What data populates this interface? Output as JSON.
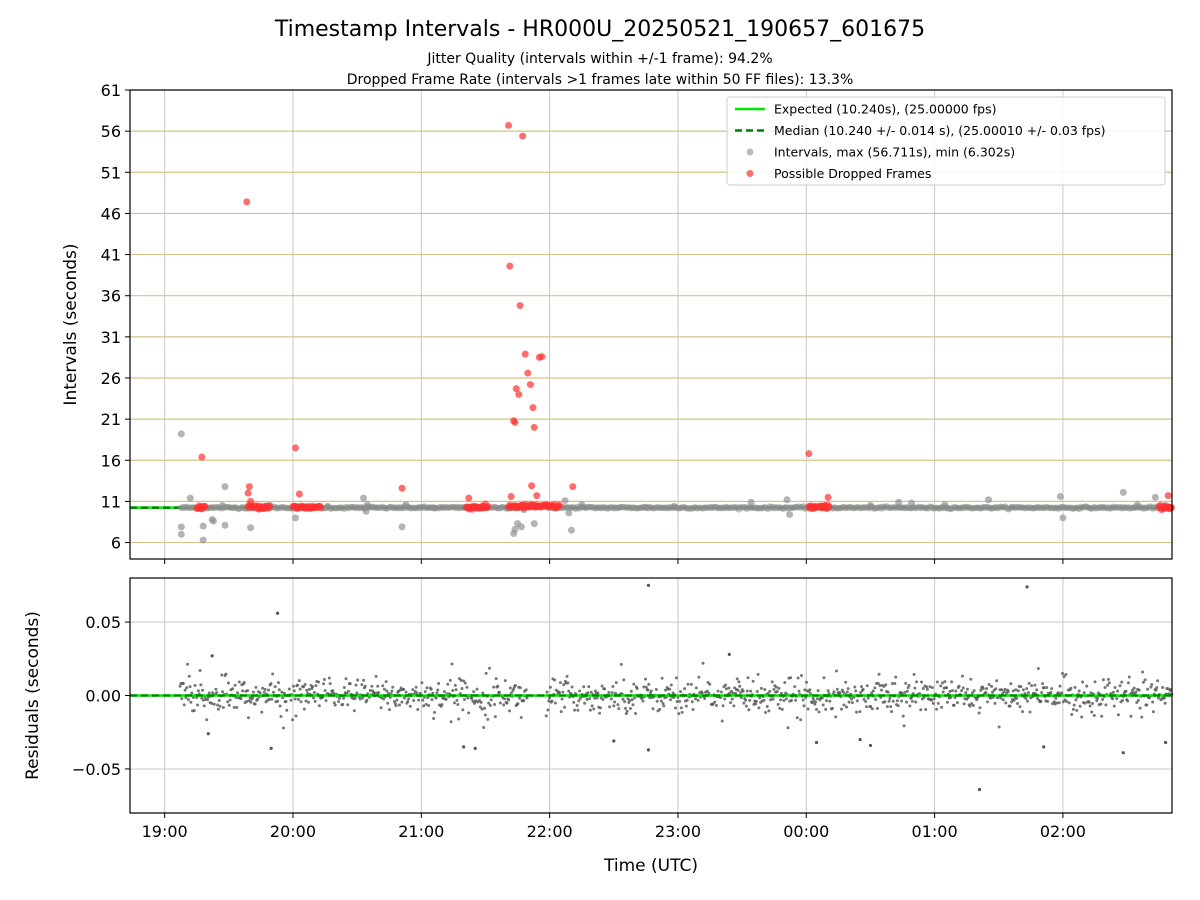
{
  "chart_data": [
    {
      "type": "scatter",
      "panel": "intervals",
      "title": "Timestamp Intervals - HR000U_20250521_190657_601675",
      "subtitle_lines": [
        "Jitter Quality (intervals within +/-1 frame): 94.2%",
        "Dropped Frame Rate (intervals >1 frames late within 50 FF files): 13.3%"
      ],
      "xlabel": "",
      "ylabel": "Intervals (seconds)",
      "x_tick_labels": [
        "19:00",
        "20:00",
        "21:00",
        "22:00",
        "23:00",
        "00:00",
        "01:00",
        "02:00"
      ],
      "x_tick_hours": [
        19,
        20,
        21,
        22,
        23,
        24,
        25,
        26
      ],
      "xlim_hours": [
        18.73,
        26.85
      ],
      "ylim": [
        4,
        61
      ],
      "y_ticks": [
        6,
        11,
        16,
        21,
        26,
        31,
        36,
        41,
        46,
        51,
        56,
        61
      ],
      "grid": true,
      "legend_placement": "top-right",
      "colors": {
        "expected": "#00e600",
        "median": "#007f00",
        "intervals": "#8c8c8c",
        "dropped": "#ff3030",
        "hgrid": "#d2c48a",
        "vgrid": "#c8c8c8"
      },
      "expected_value": 10.24,
      "median_value": 10.24,
      "legend": [
        "Expected (10.240s), (25.00000 fps)",
        "Median (10.240 +/- 0.014 s), (25.00010 +/- 0.03 fps)",
        "Intervals, max (56.711s), min (6.302s)",
        "Possible Dropped Frames"
      ],
      "series": [
        {
          "name": "Intervals, max (56.711s), min (6.302s)",
          "x": [
            19.13,
            19.13,
            19.13,
            19.2,
            19.3,
            19.3,
            19.37,
            19.38,
            19.45,
            19.47,
            19.47,
            19.67,
            19.82,
            20.02,
            20.27,
            20.55,
            20.57,
            20.58,
            20.85,
            20.88,
            21.1,
            21.72,
            21.73,
            21.75,
            21.78,
            21.8,
            21.88,
            22.12,
            22.15,
            22.17,
            22.25,
            22.75,
            22.97,
            23.57,
            23.85,
            23.87,
            24.5,
            24.72,
            24.82,
            25.08,
            25.42,
            25.98,
            26.0,
            26.47,
            26.58,
            26.72,
            26.8
          ],
          "values": [
            19.2,
            7.9,
            7.0,
            11.4,
            8.0,
            6.3,
            8.8,
            8.6,
            10.5,
            8.1,
            12.8,
            7.8,
            10.5,
            9.0,
            10.4,
            11.4,
            9.8,
            10.6,
            7.9,
            10.6,
            10.2,
            7.1,
            7.6,
            8.3,
            7.9,
            10.0,
            8.3,
            11.1,
            9.6,
            7.5,
            10.6,
            10.3,
            10.4,
            10.9,
            11.2,
            9.4,
            10.5,
            10.9,
            10.8,
            10.6,
            11.2,
            11.6,
            9.0,
            12.1,
            10.6,
            11.5,
            10.5
          ]
        },
        {
          "name": "Possible Dropped Frames",
          "x": [
            19.27,
            19.29,
            19.64,
            19.65,
            19.66,
            19.67,
            20.02,
            20.05,
            20.85,
            21.37,
            21.68,
            21.69,
            21.7,
            21.72,
            21.73,
            21.74,
            21.76,
            21.77,
            21.79,
            21.81,
            21.83,
            21.85,
            21.86,
            21.87,
            21.88,
            21.9,
            21.92,
            21.94,
            22.18,
            24.02,
            24.17,
            26.82
          ],
          "values": [
            10.3,
            16.4,
            47.4,
            12.0,
            12.8,
            11.0,
            17.5,
            11.9,
            12.6,
            11.4,
            56.7,
            39.6,
            11.6,
            20.8,
            20.6,
            24.7,
            24.0,
            34.8,
            55.4,
            28.9,
            26.6,
            25.2,
            12.9,
            22.4,
            20.0,
            11.7,
            28.5,
            28.6,
            12.8,
            16.8,
            11.5,
            11.7
          ],
          "clusters": [
            {
              "x_start": 19.25,
              "x_end": 19.32,
              "value": 10.3
            },
            {
              "x_start": 19.65,
              "x_end": 19.82,
              "value": 10.3
            },
            {
              "x_start": 20.0,
              "x_end": 20.22,
              "value": 10.3
            },
            {
              "x_start": 21.35,
              "x_end": 21.52,
              "value": 10.3
            },
            {
              "x_start": 21.68,
              "x_end": 22.08,
              "value": 10.4
            },
            {
              "x_start": 24.02,
              "x_end": 24.18,
              "value": 10.3
            },
            {
              "x_start": 26.75,
              "x_end": 26.85,
              "value": 10.3
            }
          ]
        }
      ]
    },
    {
      "type": "scatter",
      "panel": "residuals",
      "xlabel": "Time (UTC)",
      "ylabel": "Residuals (seconds)",
      "ylim": [
        -0.08,
        0.08
      ],
      "y_ticks": [
        0.05,
        0.0,
        -0.05
      ],
      "y_tick_labels": [
        "0.05",
        "0.00",
        "−0.05"
      ],
      "grid": true,
      "zero_line_colors": {
        "solid": "#00e600",
        "dashed": "#007f00"
      },
      "point_color": "#555555",
      "x_range_hours": [
        19.12,
        26.85
      ],
      "gap_hours": [
        21.83,
        21.97
      ],
      "outliers": {
        "x": [
          19.88,
          22.77,
          25.72,
          25.35,
          19.34,
          19.37,
          19.83,
          21.33,
          21.42,
          22.5,
          22.77,
          23.4,
          24.08,
          24.42,
          24.5,
          25.85,
          26.47,
          26.8
        ],
        "values": [
          0.056,
          0.075,
          0.074,
          -0.064,
          -0.026,
          0.027,
          -0.036,
          -0.035,
          -0.036,
          -0.031,
          -0.037,
          0.028,
          -0.032,
          -0.03,
          -0.034,
          -0.035,
          -0.039,
          -0.032
        ]
      },
      "noise_amplitude": 0.011
    }
  ]
}
